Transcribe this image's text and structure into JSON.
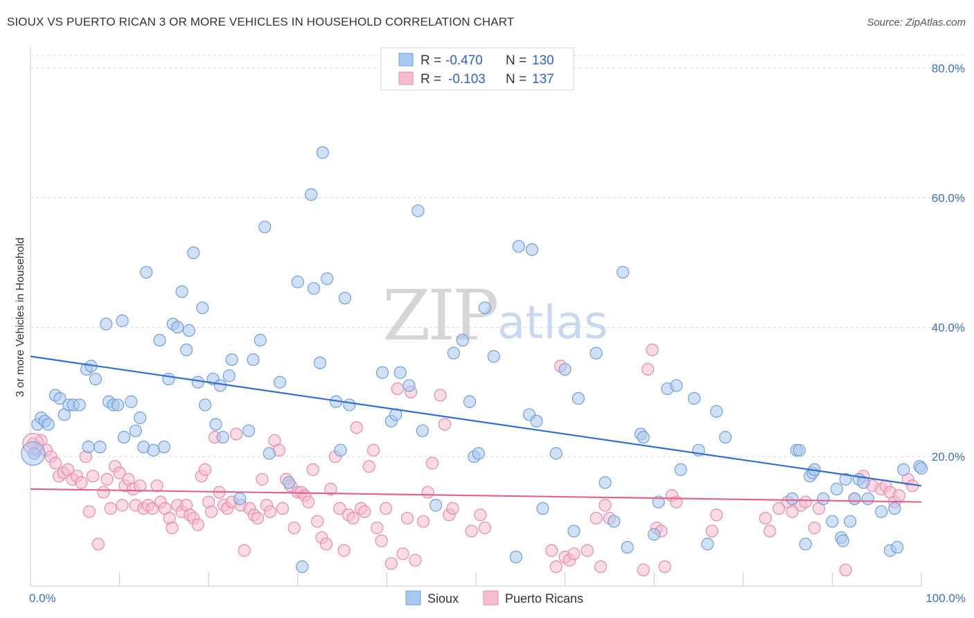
{
  "header": {
    "title": "SIOUX VS PUERTO RICAN 3 OR MORE VEHICLES IN HOUSEHOLD CORRELATION CHART",
    "source": "Source: ZipAtlas.com"
  },
  "watermark": {
    "zip": "ZIP",
    "atlas": "atlas"
  },
  "legend": {
    "r_label": "R =",
    "n_label": "N =",
    "sioux": {
      "r": "-0.470",
      "n": "130"
    },
    "pr": {
      "r": "-0.103",
      "n": "137"
    }
  },
  "bottom_legend": {
    "sioux": "Sioux",
    "pr": "Puerto Ricans"
  },
  "colors": {
    "sioux_fill": "#a9c8f0",
    "sioux_stroke": "#6f9fd8",
    "sioux_line": "#2f6fd0",
    "pr_fill": "#f6bcd0",
    "pr_stroke": "#e68aab",
    "pr_line": "#e0648e",
    "grid": "#d9d9d9",
    "tick_text": "#3a6fc4"
  },
  "chart_data": {
    "type": "scatter",
    "ylabel": "3 or more Vehicles in Household",
    "xlim": [
      0,
      100
    ],
    "ylim": [
      0,
      82
    ],
    "y_ticks": [
      {
        "v": 20,
        "label": "20.0%"
      },
      {
        "v": 40,
        "label": "40.0%"
      },
      {
        "v": 60,
        "label": "60.0%"
      },
      {
        "v": 80,
        "label": "80.0%"
      }
    ],
    "x_tick_labels": {
      "min": "0.0%",
      "max": "100.0%"
    },
    "grid": true,
    "series": [
      {
        "name": "Sioux",
        "trend": {
          "x0": 0,
          "y0": 35.5,
          "x1": 100,
          "y1": 15.5
        },
        "points": [
          [
            0.4,
            20.5
          ],
          [
            0.8,
            25
          ],
          [
            1.2,
            26
          ],
          [
            1.6,
            25.5
          ],
          [
            2.0,
            25
          ],
          [
            2.8,
            29.5
          ],
          [
            3.3,
            29
          ],
          [
            3.8,
            26.5
          ],
          [
            4.3,
            28
          ],
          [
            4.8,
            28
          ],
          [
            5.5,
            28
          ],
          [
            6.3,
            33.5
          ],
          [
            6.8,
            34
          ],
          [
            7.3,
            32
          ],
          [
            6.5,
            21.5
          ],
          [
            7.8,
            21.5
          ],
          [
            8.5,
            40.5
          ],
          [
            8.8,
            28.5
          ],
          [
            9.3,
            28
          ],
          [
            9.8,
            28
          ],
          [
            10.3,
            41
          ],
          [
            10.5,
            23
          ],
          [
            11.3,
            28.5
          ],
          [
            11.8,
            24
          ],
          [
            12.3,
            26
          ],
          [
            12.7,
            21.5
          ],
          [
            13.0,
            48.5
          ],
          [
            13.8,
            21
          ],
          [
            14.5,
            38
          ],
          [
            15.0,
            21.5
          ],
          [
            15.5,
            32
          ],
          [
            16.0,
            40.5
          ],
          [
            16.5,
            40
          ],
          [
            17.0,
            45.5
          ],
          [
            17.5,
            36.5
          ],
          [
            17.8,
            39.5
          ],
          [
            18.3,
            51.5
          ],
          [
            18.8,
            31.5
          ],
          [
            19.3,
            43
          ],
          [
            19.6,
            28
          ],
          [
            20.5,
            32
          ],
          [
            20.8,
            25
          ],
          [
            21.3,
            31
          ],
          [
            21.6,
            23
          ],
          [
            22.3,
            32.5
          ],
          [
            22.6,
            35
          ],
          [
            23.5,
            13.5
          ],
          [
            24.5,
            24
          ],
          [
            25.0,
            35
          ],
          [
            25.8,
            38
          ],
          [
            26.3,
            55.5
          ],
          [
            26.8,
            20.5
          ],
          [
            28.0,
            31.5
          ],
          [
            29.0,
            16
          ],
          [
            30.0,
            47
          ],
          [
            30.5,
            3
          ],
          [
            31.5,
            60.5
          ],
          [
            31.8,
            46
          ],
          [
            32.5,
            34.5
          ],
          [
            32.8,
            67
          ],
          [
            33.3,
            47.5
          ],
          [
            34.3,
            28.5
          ],
          [
            34.8,
            21
          ],
          [
            35.3,
            44.5
          ],
          [
            35.8,
            28
          ],
          [
            39.5,
            33
          ],
          [
            40.5,
            25.5
          ],
          [
            41.0,
            26.5
          ],
          [
            41.5,
            33
          ],
          [
            42.5,
            31
          ],
          [
            43.5,
            58
          ],
          [
            44.0,
            24
          ],
          [
            45.5,
            12.5
          ],
          [
            47.5,
            36
          ],
          [
            48.5,
            38
          ],
          [
            49.3,
            28.5
          ],
          [
            49.8,
            20
          ],
          [
            50.3,
            20.5
          ],
          [
            51.0,
            43
          ],
          [
            52.0,
            35.5
          ],
          [
            54.5,
            4.5
          ],
          [
            54.8,
            52.5
          ],
          [
            56.0,
            26.5
          ],
          [
            56.3,
            52
          ],
          [
            56.8,
            25.5
          ],
          [
            57.5,
            12
          ],
          [
            59.0,
            20.5
          ],
          [
            60.0,
            33.5
          ],
          [
            61.0,
            8.5
          ],
          [
            61.5,
            29
          ],
          [
            63.5,
            36
          ],
          [
            64.5,
            16
          ],
          [
            65.5,
            10
          ],
          [
            66.5,
            48.5
          ],
          [
            67.0,
            6
          ],
          [
            68.5,
            23.5
          ],
          [
            68.8,
            23
          ],
          [
            70.0,
            8
          ],
          [
            70.5,
            13
          ],
          [
            71.5,
            30.5
          ],
          [
            72.5,
            31
          ],
          [
            73.0,
            18
          ],
          [
            74.5,
            29
          ],
          [
            75.0,
            21
          ],
          [
            76.0,
            6.5
          ],
          [
            77.0,
            27
          ],
          [
            78.0,
            23
          ],
          [
            85.5,
            13.5
          ],
          [
            86.0,
            21
          ],
          [
            86.3,
            21
          ],
          [
            87.0,
            6.5
          ],
          [
            87.5,
            17
          ],
          [
            87.8,
            17.5
          ],
          [
            88.0,
            18
          ],
          [
            89.0,
            13.5
          ],
          [
            90.0,
            10
          ],
          [
            90.5,
            15
          ],
          [
            91.0,
            7.5
          ],
          [
            91.2,
            7
          ],
          [
            91.5,
            16.5
          ],
          [
            92.0,
            10
          ],
          [
            92.5,
            13.5
          ],
          [
            93.0,
            16.5
          ],
          [
            93.5,
            16
          ],
          [
            94.0,
            13.5
          ],
          [
            95.5,
            11.5
          ],
          [
            96.5,
            5.5
          ],
          [
            97.0,
            12
          ],
          [
            97.3,
            6
          ],
          [
            98.0,
            18
          ],
          [
            99.8,
            18.5
          ],
          [
            100.0,
            18.2
          ]
        ]
      },
      {
        "name": "Puerto Ricans",
        "trend": {
          "x0": 0,
          "y0": 15.0,
          "x1": 100,
          "y1": 13.0
        },
        "points": [
          [
            0.3,
            22
          ],
          [
            0.7,
            21
          ],
          [
            1.2,
            22.5
          ],
          [
            1.8,
            21
          ],
          [
            2.3,
            20
          ],
          [
            2.8,
            19
          ],
          [
            3.2,
            17
          ],
          [
            3.7,
            17.5
          ],
          [
            4.2,
            18
          ],
          [
            4.7,
            16.5
          ],
          [
            5.2,
            17
          ],
          [
            5.7,
            16
          ],
          [
            6.2,
            20
          ],
          [
            6.6,
            11.5
          ],
          [
            7.0,
            17
          ],
          [
            7.6,
            6.5
          ],
          [
            8.2,
            14.5
          ],
          [
            8.6,
            16.5
          ],
          [
            9.0,
            12
          ],
          [
            9.5,
            18.5
          ],
          [
            10.0,
            17.5
          ],
          [
            10.3,
            12.5
          ],
          [
            10.6,
            15.5
          ],
          [
            11.0,
            16.5
          ],
          [
            11.5,
            15
          ],
          [
            11.8,
            12.5
          ],
          [
            12.3,
            15.5
          ],
          [
            12.7,
            12
          ],
          [
            13.2,
            12.5
          ],
          [
            13.7,
            12
          ],
          [
            14.2,
            15.5
          ],
          [
            14.6,
            13
          ],
          [
            15.1,
            12
          ],
          [
            15.6,
            10.5
          ],
          [
            15.9,
            9
          ],
          [
            16.5,
            12.5
          ],
          [
            17.0,
            11.5
          ],
          [
            17.5,
            12.5
          ],
          [
            17.9,
            11
          ],
          [
            18.3,
            10.5
          ],
          [
            18.8,
            9.5
          ],
          [
            19.2,
            17
          ],
          [
            19.6,
            18
          ],
          [
            20.0,
            13
          ],
          [
            20.3,
            11.5
          ],
          [
            20.7,
            23
          ],
          [
            21.2,
            14.5
          ],
          [
            21.7,
            12.5
          ],
          [
            22.1,
            12
          ],
          [
            22.6,
            13
          ],
          [
            23.1,
            23.5
          ],
          [
            23.6,
            12.5
          ],
          [
            24.0,
            5.5
          ],
          [
            24.6,
            12
          ],
          [
            25.1,
            11
          ],
          [
            25.5,
            10.5
          ],
          [
            26.0,
            16.5
          ],
          [
            26.5,
            12.5
          ],
          [
            26.9,
            11.5
          ],
          [
            27.4,
            22.5
          ],
          [
            27.9,
            21
          ],
          [
            28.3,
            12
          ],
          [
            28.7,
            16.5
          ],
          [
            29.2,
            15.5
          ],
          [
            29.6,
            9
          ],
          [
            30.0,
            14.5
          ],
          [
            30.4,
            14.5
          ],
          [
            30.8,
            14
          ],
          [
            31.2,
            13
          ],
          [
            31.7,
            18
          ],
          [
            32.2,
            10
          ],
          [
            32.7,
            7.5
          ],
          [
            33.2,
            6.5
          ],
          [
            33.7,
            15
          ],
          [
            34.2,
            20
          ],
          [
            34.7,
            12
          ],
          [
            35.2,
            5.5
          ],
          [
            35.7,
            11
          ],
          [
            36.2,
            10.5
          ],
          [
            36.6,
            24.5
          ],
          [
            37.1,
            12
          ],
          [
            37.5,
            11.5
          ],
          [
            38.0,
            18.5
          ],
          [
            38.5,
            21
          ],
          [
            38.9,
            9
          ],
          [
            39.4,
            7
          ],
          [
            39.9,
            12
          ],
          [
            40.5,
            3.5
          ],
          [
            41.2,
            30.5
          ],
          [
            41.8,
            5
          ],
          [
            42.3,
            10.5
          ],
          [
            42.7,
            30
          ],
          [
            43.2,
            4
          ],
          [
            44.1,
            10
          ],
          [
            44.6,
            14.5
          ],
          [
            45.1,
            19
          ],
          [
            46.0,
            29.5
          ],
          [
            46.5,
            25
          ],
          [
            47.0,
            11
          ],
          [
            47.4,
            12
          ],
          [
            49.5,
            8.5
          ],
          [
            50.5,
            11
          ],
          [
            51.0,
            9
          ],
          [
            58.5,
            5.5
          ],
          [
            59.0,
            3
          ],
          [
            59.5,
            34
          ],
          [
            60.0,
            4.5
          ],
          [
            60.5,
            4
          ],
          [
            61.0,
            5
          ],
          [
            62.5,
            5.5
          ],
          [
            63.5,
            10.5
          ],
          [
            64.0,
            3
          ],
          [
            64.5,
            12.5
          ],
          [
            65.0,
            10.5
          ],
          [
            68.8,
            2.5
          ],
          [
            69.3,
            33.5
          ],
          [
            69.8,
            36.5
          ],
          [
            70.3,
            9
          ],
          [
            70.8,
            8.5
          ],
          [
            71.2,
            3
          ],
          [
            72.0,
            14
          ],
          [
            72.5,
            13
          ],
          [
            76.5,
            8.5
          ],
          [
            77.0,
            11
          ],
          [
            82.5,
            10.5
          ],
          [
            83.0,
            8.5
          ],
          [
            84.0,
            12
          ],
          [
            85.0,
            13
          ],
          [
            85.5,
            11.5
          ],
          [
            86.5,
            12.5
          ],
          [
            87.0,
            13
          ],
          [
            88.0,
            9
          ],
          [
            88.5,
            12
          ],
          [
            91.5,
            2.5
          ],
          [
            92.5,
            13.5
          ],
          [
            93.5,
            17
          ],
          [
            94.5,
            15.5
          ],
          [
            95.5,
            15
          ],
          [
            96.0,
            15.5
          ],
          [
            96.5,
            14.5
          ],
          [
            97.0,
            13
          ],
          [
            97.5,
            14
          ],
          [
            98.5,
            16.5
          ],
          [
            99.0,
            15.5
          ]
        ]
      }
    ]
  }
}
